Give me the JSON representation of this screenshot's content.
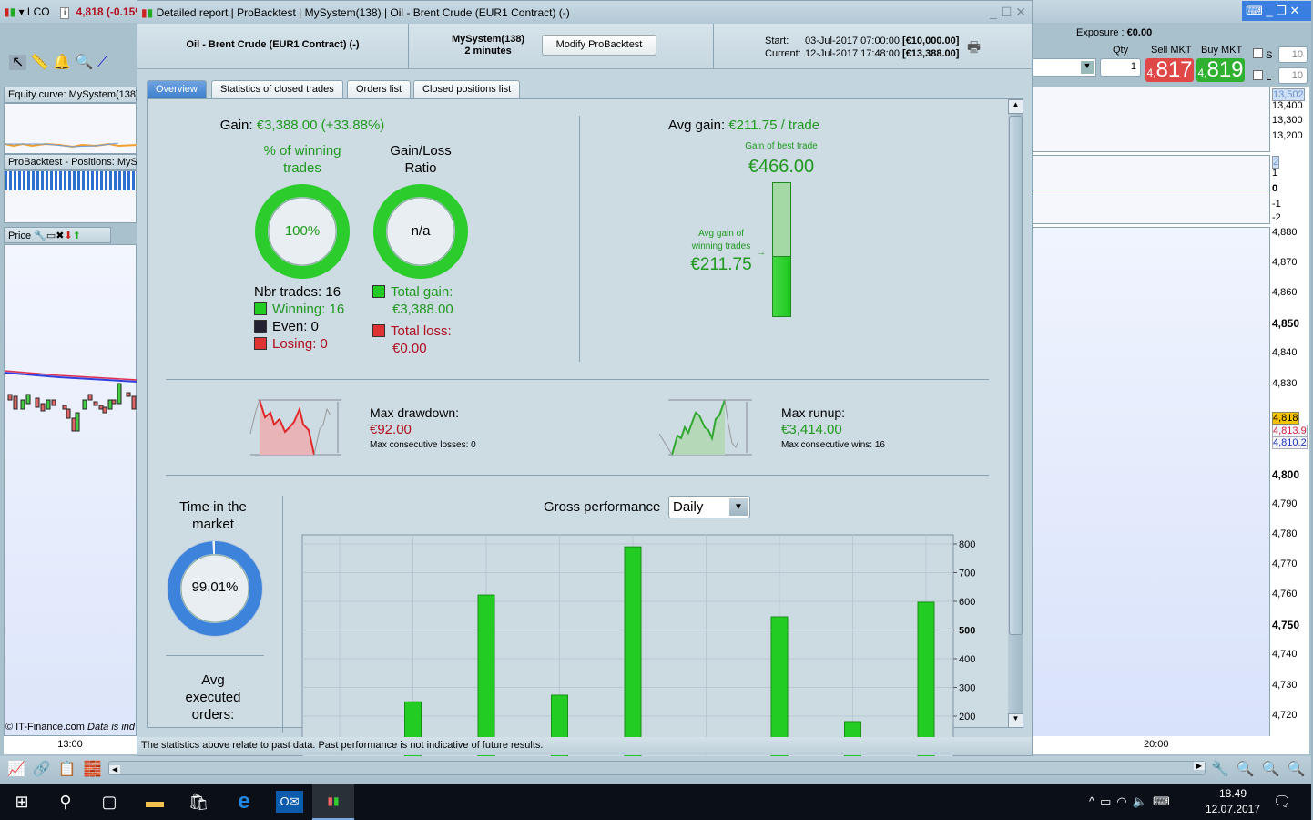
{
  "app": {
    "symbol": "LCO",
    "quote": "4,818 (-0.15%",
    "left_panels": {
      "equity": "Equity curve: MySystem(138)",
      "positions": "ProBacktest - Positions: MySystem(138)",
      "price": "Price"
    },
    "copyright": "© IT-Finance.com",
    "disclaimer_short": "Data is ind",
    "time_left": "13:00",
    "time_right": "20:00"
  },
  "dialog": {
    "title_parts": [
      "Detailed report",
      "ProBacktest",
      "MySystem(138)",
      "Oil - Brent Crude (EUR1 Contract) (-)"
    ],
    "instrument": "Oil - Brent Crude (EUR1 Contract) (-)",
    "system": "MySystem(138)",
    "timeframe": "2 minutes",
    "modify_label": "Modify ProBacktest",
    "start_label": "Start:",
    "start_date": "03-Jul-2017 07:00:00",
    "start_value": "[€10,000.00]",
    "current_label": "Current:",
    "current_date": "12-Jul-2017 17:48:00",
    "current_value": "[€13,388.00]",
    "tabs": [
      "Overview",
      "Statistics of closed trades",
      "Orders list",
      "Closed positions list"
    ],
    "footer": "The statistics above relate to past data. Past performance is not indicative of future results."
  },
  "overview": {
    "gain_label": "Gain:",
    "gain_value": "€3,388.00 (+33.88%)",
    "winning_title_1": "% of winning",
    "winning_title_2": "trades",
    "winning_pct": "100%",
    "winning_fraction": 1.0,
    "ratio_title_1": "Gain/Loss",
    "ratio_title_2": "Ratio",
    "ratio_value": "n/a",
    "nbr_trades": "Nbr trades: 16",
    "winning": "Winning: 16",
    "even": "Even: 0",
    "losing": "Losing: 0",
    "total_gain_label": "Total gain:",
    "total_gain": "€3,388.00",
    "total_loss_label": "Total loss:",
    "total_loss": "€0.00",
    "avg_gain_label": "Avg gain:",
    "avg_gain_value": "€211.75 / trade",
    "best_trade_label": "Gain of best trade",
    "best_trade": "€466.00",
    "best_trade_num": 466,
    "avg_win_label_1": "Avg gain of",
    "avg_win_label_2": "winning trades",
    "avg_win": "€211.75",
    "avg_win_num": 211.75,
    "drawdown_label": "Max drawdown:",
    "drawdown": "€92.00",
    "max_consec_losses": "Max consecutive losses: 0",
    "runup_label": "Max runup:",
    "runup": "€3,414.00",
    "max_consec_wins": "Max consecutive wins: 16",
    "time_market_1": "Time in the",
    "time_market_2": "market",
    "time_market": "99.01%",
    "time_market_fraction": 0.9901,
    "avg_orders_1": "Avg",
    "avg_orders_2": "executed",
    "avg_orders_3": "orders:",
    "gross_label": "Gross performance",
    "period": "Daily"
  },
  "chart_data": {
    "type": "bar",
    "title": "Gross performance",
    "categories": [
      "",
      "",
      "",
      "",
      "",
      "",
      "",
      "",
      ""
    ],
    "values": [
      0,
      250,
      622,
      273,
      790,
      0,
      546,
      181,
      597
    ],
    "yticks": [
      800,
      700,
      600,
      500,
      400,
      300,
      200
    ],
    "ylim": [
      0,
      830
    ],
    "color": "#22cc22"
  },
  "trading": {
    "exposure_label": "Exposure :",
    "exposure": "€0.00",
    "qty_label": "Qty",
    "qty": "1",
    "sell_label": "Sell MKT",
    "sell_big": "817",
    "sell_small": "4,",
    "buy_label": "Buy MKT",
    "buy_big": "819",
    "buy_small": "4,",
    "s_label": "S",
    "l_label": "L",
    "s_qty": "10",
    "l_qty": "10"
  },
  "axes": {
    "equity": [
      "13,502",
      "13,400",
      "13,300",
      "13,200"
    ],
    "positions": [
      "2",
      "1",
      "0",
      "-1",
      "-2"
    ],
    "price": [
      [
        "4,880",
        4880
      ],
      [
        "4,870",
        4870
      ],
      [
        "4,860",
        4860
      ],
      [
        "4,850",
        4850
      ],
      [
        "4,840",
        4840
      ],
      [
        "4,830",
        4830
      ],
      [
        "4,800",
        4800
      ],
      [
        "4,790",
        4790
      ],
      [
        "4,780",
        4780
      ],
      [
        "4,770",
        4770
      ],
      [
        "4,760",
        4760
      ],
      [
        "4,750",
        4750
      ],
      [
        "4,740",
        4740
      ],
      [
        "4,730",
        4730
      ],
      [
        "4,720",
        4720
      ]
    ],
    "last": "4,818",
    "ma1": "4,813.9",
    "ma2": "4,810.2"
  },
  "taskbar": {
    "time": "18.49",
    "date": "12.07.2017"
  }
}
